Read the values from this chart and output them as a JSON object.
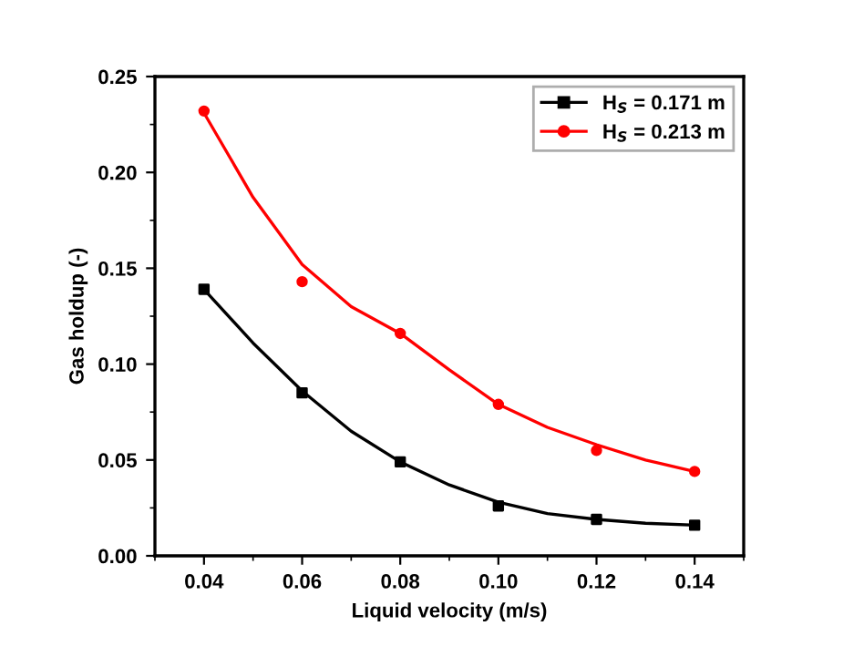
{
  "chart_data": {
    "type": "scatter",
    "xlabel": "Liquid velocity (m/s)",
    "ylabel": "Gas holdup (-)",
    "xlim": [
      0.03,
      0.15
    ],
    "xticks": [
      0.04,
      0.06,
      0.08,
      {
        "value": 0.1,
        "label": "0.10"
      },
      0.12,
      0.14
    ],
    "ylim": [
      0,
      0.25
    ],
    "yticks": [
      {
        "value": 0,
        "label": "0.00"
      },
      0.05,
      {
        "value": 0.1,
        "label": "0.10"
      },
      0.15,
      {
        "value": 0.2,
        "label": "0.20"
      },
      0.25
    ],
    "legend": "top right",
    "grid": false,
    "series": [
      {
        "name": "H$_{S}$ = 0.171 m",
        "marker": "square",
        "color": "#000000",
        "x": [
          0.04,
          0.06,
          0.08,
          0.1,
          0.12,
          0.14
        ],
        "values": [
          0.139,
          0.085,
          0.049,
          0.026,
          0.019,
          0.016
        ]
      },
      {
        "name": "H$_{S}$ = 0.213 m",
        "marker": "circle",
        "color": "#ff0000",
        "x": [
          0.04,
          0.06,
          0.08,
          0.1,
          0.12,
          0.14
        ],
        "values": [
          0.232,
          0.143,
          0.116,
          0.079,
          0.055,
          0.044
        ]
      },
      {
        "type": "line",
        "marker": "none",
        "color": "#000000",
        "x": [
          0.04,
          0.05,
          0.06,
          0.07,
          0.08,
          0.09,
          0.1,
          0.11,
          0.12,
          0.13,
          0.14
        ],
        "values": [
          0.139,
          0.111,
          0.086,
          0.065,
          0.049,
          0.037,
          0.028,
          0.022,
          0.019,
          0.017,
          0.016
        ]
      },
      {
        "type": "line",
        "marker": "none",
        "color": "#ff0000",
        "x": [
          0.04,
          0.05,
          0.06,
          0.07,
          0.08,
          0.09,
          0.1,
          0.11,
          0.12,
          0.13,
          0.14
        ],
        "values": [
          0.231,
          0.187,
          0.152,
          0.13,
          0.116,
          0.097,
          0.079,
          0.067,
          0.058,
          0.05,
          0.044
        ]
      }
    ]
  }
}
